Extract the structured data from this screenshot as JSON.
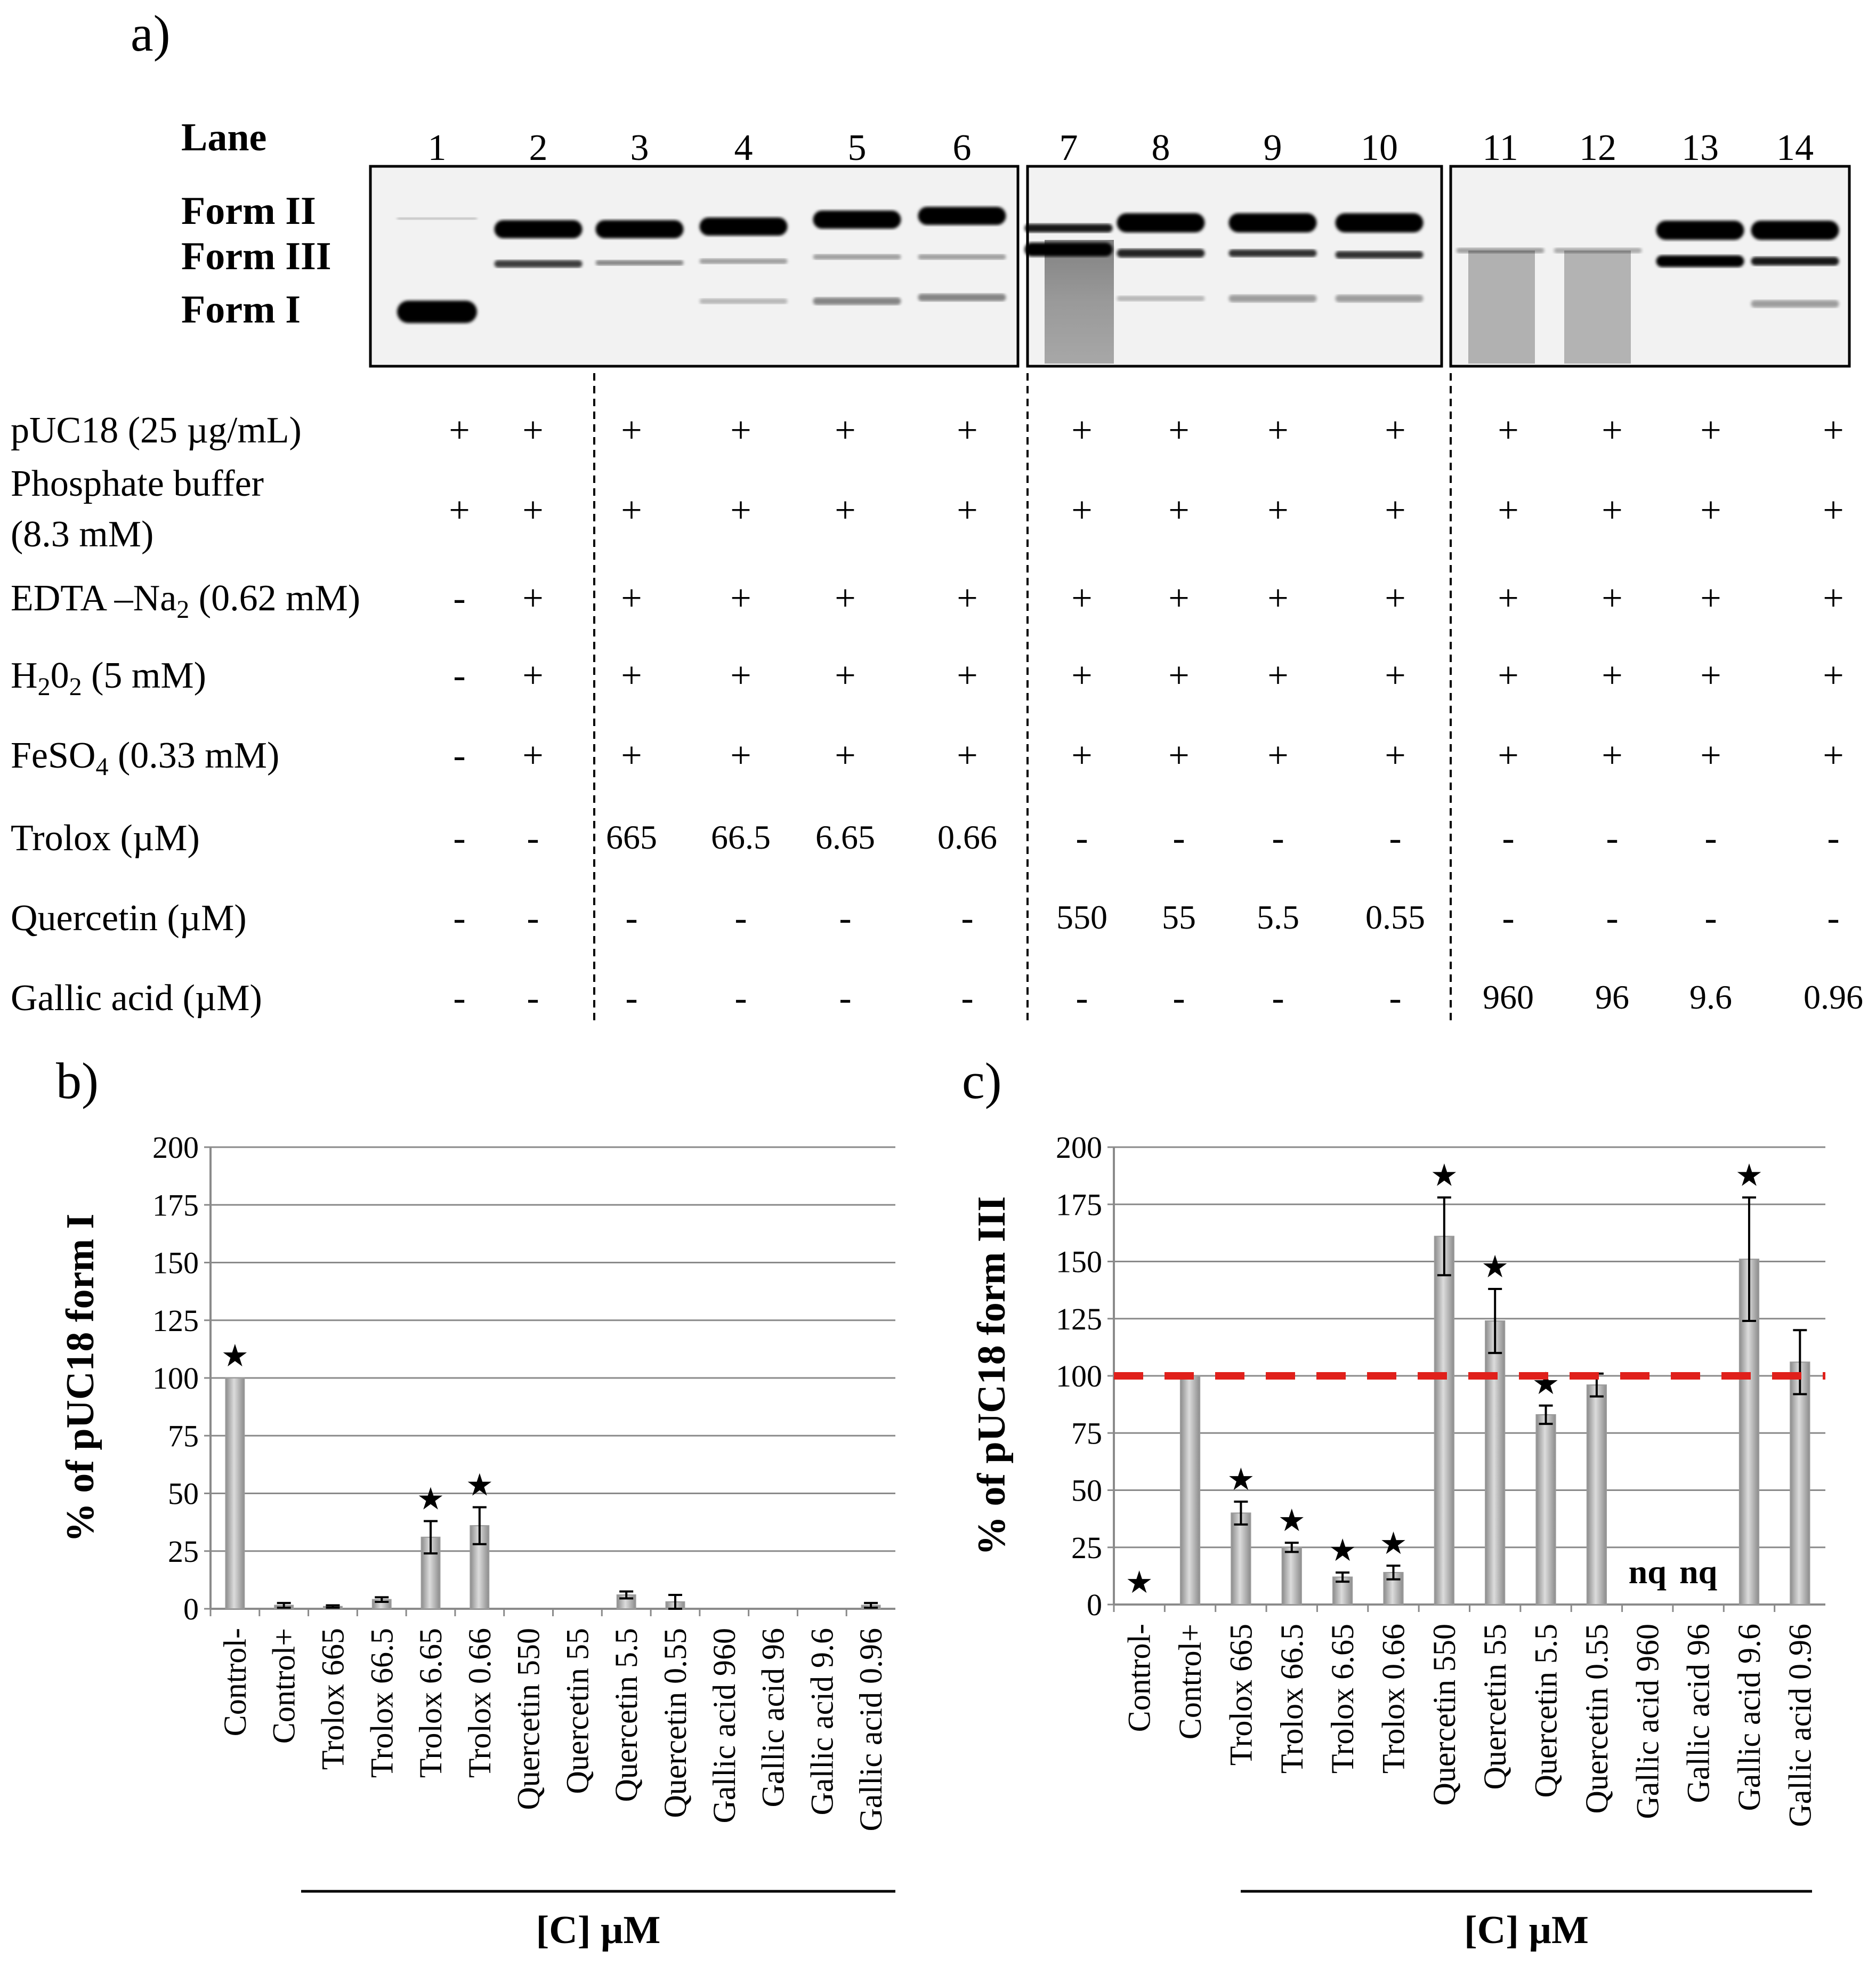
{
  "panel_a": {
    "label": "a)",
    "lane_header": "Lane",
    "lanes": [
      "1",
      "2",
      "3",
      "4",
      "5",
      "6",
      "7",
      "8",
      "9",
      "10",
      "11",
      "12",
      "13",
      "14"
    ],
    "band_labels": [
      "Form II",
      "Form III",
      "Form I"
    ],
    "reagent_rows": [
      {
        "name": "pUC18 (25 µg/mL)",
        "values": [
          "+",
          "+",
          "+",
          "+",
          "+",
          "+",
          "+",
          "+",
          "+",
          "+",
          "+",
          "+",
          "+",
          "+"
        ]
      },
      {
        "name": "Phosphate buffer",
        "name2": "(8.3 mM)",
        "values": [
          "+",
          "+",
          "+",
          "+",
          "+",
          "+",
          "+",
          "+",
          "+",
          "+",
          "+",
          "+",
          "+",
          "+"
        ]
      },
      {
        "name": "EDTA –Na",
        "sub": "2",
        "tail": " (0.62 mM)",
        "values": [
          "-",
          "+",
          "+",
          "+",
          "+",
          "+",
          "+",
          "+",
          "+",
          "+",
          "+",
          "+",
          "+",
          "+"
        ]
      },
      {
        "name": "H",
        "sub": "2",
        "mid": "0",
        "sub2": "2",
        "tail": " (5 mM)",
        "values": [
          "-",
          "+",
          "+",
          "+",
          "+",
          "+",
          "+",
          "+",
          "+",
          "+",
          "+",
          "+",
          "+",
          "+"
        ]
      },
      {
        "name": "FeSO",
        "sub": "4",
        "tail": " (0.33 mM)",
        "values": [
          "-",
          "+",
          "+",
          "+",
          "+",
          "+",
          "+",
          "+",
          "+",
          "+",
          "+",
          "+",
          "+",
          "+"
        ]
      },
      {
        "name": "Trolox (µM)",
        "values": [
          "-",
          "-",
          "665",
          "66.5",
          "6.65",
          "0.66",
          "-",
          "-",
          "-",
          "-",
          "-",
          "-",
          "-",
          "-"
        ]
      },
      {
        "name": "Quercetin (µM)",
        "values": [
          "-",
          "-",
          "-",
          "-",
          "-",
          "-",
          "550",
          "55",
          "5.5",
          "0.55",
          "-",
          "-",
          "-",
          "-"
        ]
      },
      {
        "name": "Gallic acid (µM)",
        "values": [
          "-",
          "-",
          "-",
          "-",
          "-",
          "-",
          "-",
          "-",
          "-",
          "-",
          "960",
          "96",
          "9.6",
          "0.96"
        ]
      }
    ]
  },
  "chart_data": [
    {
      "panel": "b)",
      "type": "bar",
      "ylabel": "% of pUC18 form I",
      "xlabel": "[C] µM",
      "ylim": [
        0,
        200
      ],
      "yticks": [
        "0",
        "25",
        "50",
        "75",
        "100",
        "125",
        "150",
        "175",
        "200"
      ],
      "categories": [
        "Control-",
        "Control+",
        "Trolox 665",
        "Trolox 66.5",
        "Trolox 6.65",
        "Trolox 0.66",
        "Quercetin 550",
        "Quercetin 55",
        "Quercetin 5.5",
        "Quercetin 0.55",
        "Gallic acid 960",
        "Gallic acid 96",
        "Gallic acid 9.6",
        "Gallic acid 0.96"
      ],
      "values": [
        100,
        1.5,
        1,
        4,
        31,
        36,
        0,
        0,
        6,
        3,
        0,
        0,
        0,
        1.5
      ],
      "errors": [
        0,
        1,
        0.5,
        1,
        7,
        8,
        0,
        0,
        1.5,
        3,
        0,
        0,
        0,
        1
      ],
      "significant": [
        true,
        false,
        false,
        false,
        true,
        true,
        false,
        false,
        false,
        false,
        false,
        false,
        false,
        false
      ],
      "star": "★"
    },
    {
      "panel": "c)",
      "type": "bar",
      "ylabel": "% of pUC18 form III",
      "xlabel": "[C] µM",
      "ylim": [
        0,
        200
      ],
      "yticks": [
        "0",
        "25",
        "50",
        "75",
        "100",
        "125",
        "150",
        "175",
        "200"
      ],
      "categories": [
        "Control-",
        "Control+",
        "Trolox 665",
        "Trolox 66.5",
        "Trolox 6.65",
        "Trolox 0.66",
        "Quercetin 550",
        "Quercetin 55",
        "Quercetin 5.5",
        "Quercetin 0.55",
        "Gallic acid 960",
        "Gallic acid 96",
        "Gallic acid 9.6",
        "Gallic acid 0.96"
      ],
      "values": [
        0,
        100,
        40,
        25,
        12,
        14,
        161,
        124,
        83,
        96,
        null,
        null,
        151,
        106
      ],
      "errors": [
        0,
        0,
        5,
        2,
        2,
        3,
        17,
        14,
        4,
        5,
        0,
        0,
        27,
        14
      ],
      "significant": [
        true,
        false,
        true,
        true,
        true,
        true,
        true,
        true,
        true,
        false,
        false,
        false,
        true,
        false
      ],
      "nq_label": "nq",
      "reference_line": 100,
      "reference_color": "#e0201b",
      "star": "★"
    }
  ]
}
